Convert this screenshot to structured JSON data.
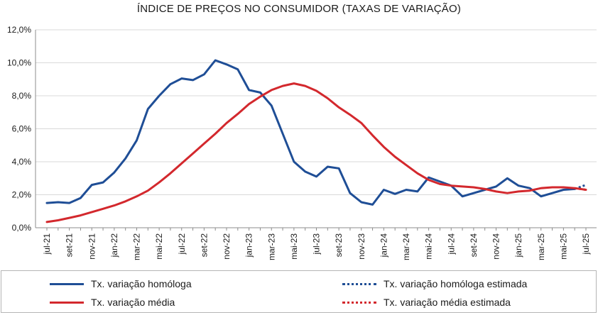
{
  "chart_data": {
    "type": "line",
    "title": "ÍNDICE DE PREÇOS NO CONSUMIDOR (TAXAS DE VARIAÇÃO)",
    "y_ticks": [
      "0,0%",
      "2,0%",
      "4,0%",
      "6,0%",
      "8,0%",
      "10,0%",
      "12,0%"
    ],
    "ylim": [
      0,
      12
    ],
    "x_tick_labels": [
      "jul-21",
      "set-21",
      "nov-21",
      "jan-22",
      "mar-22",
      "mai-22",
      "jul-22",
      "set-22",
      "nov-22",
      "jan-23",
      "mar-23",
      "mai-23",
      "jul-23",
      "set-23",
      "nov-23",
      "jan-24",
      "mar-24",
      "mai-24",
      "jul-24",
      "set-24",
      "nov-24",
      "jan-25",
      "mar-25",
      "mai-25",
      "jul-25"
    ],
    "months": [
      "jul-21",
      "ago-21",
      "set-21",
      "out-21",
      "nov-21",
      "dez-21",
      "jan-22",
      "fev-22",
      "mar-22",
      "abr-22",
      "mai-22",
      "jun-22",
      "jul-22",
      "ago-22",
      "set-22",
      "out-22",
      "nov-22",
      "dez-22",
      "jan-23",
      "fev-23",
      "mar-23",
      "abr-23",
      "mai-23",
      "jun-23",
      "jul-23",
      "ago-23",
      "set-23",
      "out-23",
      "nov-23",
      "dez-23",
      "jan-24",
      "fev-24",
      "mar-24",
      "abr-24",
      "mai-24",
      "jun-24",
      "jul-24",
      "ago-24",
      "set-24",
      "out-24",
      "nov-24",
      "dez-24",
      "jan-25",
      "fev-25",
      "mar-25",
      "abr-25",
      "mai-25",
      "jun-25",
      "jul-25"
    ],
    "grid": true,
    "legend_position": "bottom",
    "series": [
      {
        "name": "Tx. variação homóloga",
        "color": "#1f4e96",
        "style": "solid",
        "values": [
          1.5,
          1.55,
          1.5,
          1.8,
          2.6,
          2.75,
          3.35,
          4.2,
          5.3,
          7.2,
          8.0,
          8.7,
          9.05,
          8.95,
          9.3,
          10.15,
          9.9,
          9.6,
          8.35,
          8.2,
          7.4,
          5.7,
          4.0,
          3.4,
          3.1,
          3.7,
          3.6,
          2.1,
          1.55,
          1.4,
          2.3,
          2.05,
          2.3,
          2.2,
          3.05,
          2.8,
          2.55,
          1.9,
          2.1,
          2.3,
          2.5,
          3.0,
          2.55,
          2.4,
          1.9,
          2.1,
          2.3,
          2.35,
          null
        ]
      },
      {
        "name": "Tx. variação homóloga estimada",
        "color": "#1f4e96",
        "style": "dotted",
        "values": [
          null,
          null,
          null,
          null,
          null,
          null,
          null,
          null,
          null,
          null,
          null,
          null,
          null,
          null,
          null,
          null,
          null,
          null,
          null,
          null,
          null,
          null,
          null,
          null,
          null,
          null,
          null,
          null,
          null,
          null,
          null,
          null,
          null,
          null,
          null,
          null,
          null,
          null,
          null,
          null,
          null,
          null,
          null,
          null,
          null,
          null,
          null,
          2.35,
          2.6
        ]
      },
      {
        "name": "Tx. variação média",
        "color": "#d3282d",
        "style": "solid",
        "values": [
          0.35,
          0.45,
          0.6,
          0.75,
          0.95,
          1.15,
          1.35,
          1.6,
          1.9,
          2.25,
          2.75,
          3.3,
          3.9,
          4.5,
          5.1,
          5.7,
          6.35,
          6.9,
          7.5,
          7.95,
          8.35,
          8.6,
          8.75,
          8.6,
          8.3,
          7.85,
          7.3,
          6.85,
          6.35,
          5.6,
          4.9,
          4.3,
          3.8,
          3.3,
          2.9,
          2.65,
          2.55,
          2.5,
          2.45,
          2.35,
          2.2,
          2.1,
          2.2,
          2.25,
          2.4,
          2.45,
          2.45,
          2.4,
          2.3
        ]
      },
      {
        "name": "Tx. variação média  estimada",
        "color": "#d3282d",
        "style": "dotted",
        "values": [
          null,
          null,
          null,
          null,
          null,
          null,
          null,
          null,
          null,
          null,
          null,
          null,
          null,
          null,
          null,
          null,
          null,
          null,
          null,
          null,
          null,
          null,
          null,
          null,
          null,
          null,
          null,
          null,
          null,
          null,
          null,
          null,
          null,
          null,
          null,
          null,
          null,
          null,
          null,
          null,
          null,
          null,
          null,
          null,
          null,
          null,
          null,
          2.4,
          2.3
        ]
      }
    ]
  }
}
